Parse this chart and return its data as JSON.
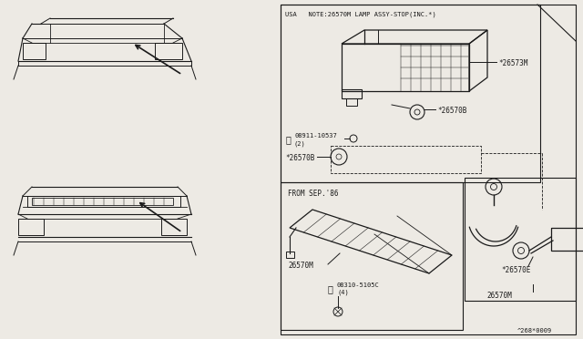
{
  "bg_color": "#edeae4",
  "line_color": "#1a1a1a",
  "title_ref": "^268*0009",
  "usa_note": "USA   NOTE:26570M LAMP ASSY-STOP(INC.*)",
  "from_sep86": "FROM SEP.'86",
  "parts": {
    "26573M": "*26573M",
    "26570B_upper": "*26570B",
    "26570B_lower": "*26570B",
    "08911_10537_label": "08911-10537",
    "08911_10537_qty": "(2)",
    "26570E": "*26570E",
    "26570M_main": "26570M",
    "26570M_sub": "26570M",
    "08310_5105C_label": "08310-5105C",
    "08310_5105C_qty": "(4)"
  }
}
